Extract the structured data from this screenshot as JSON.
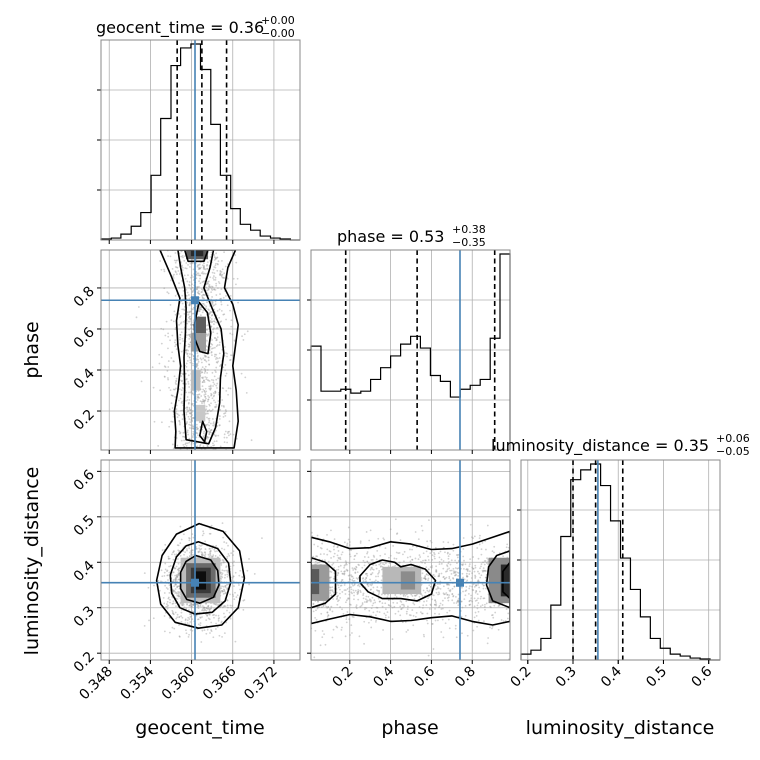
{
  "chart_data": {
    "type": "corner",
    "parameters": [
      "geocent_time",
      "phase",
      "luminosity_distance"
    ],
    "truths": {
      "geocent_time": 0.3605,
      "phase": 0.74,
      "luminosity_distance": 0.355
    },
    "colors": {
      "truth": "#4682b4",
      "hist": "#000000",
      "grid": "#b0b0b0",
      "frame": "#888888"
    },
    "grid": true,
    "titles": {
      "geocent_time": {
        "prefix": "geocent_time = 0.36",
        "plus": "+0.00",
        "minus": "−0.00"
      },
      "phase": {
        "prefix": "phase = 0.53",
        "plus": "+0.38",
        "minus": "−0.35"
      },
      "luminosity_distance": {
        "prefix": "luminosity_distance = 0.35",
        "plus": "+0.06",
        "minus": "−0.05"
      }
    },
    "axis_labels": {
      "x": [
        "geocent_time",
        "phase",
        "luminosity_distance"
      ],
      "y": [
        "phase",
        "luminosity_distance"
      ]
    },
    "ranges": {
      "geocent_time": [
        0.3468,
        0.3758
      ],
      "phase": [
        0.01,
        0.985
      ],
      "luminosity_distance": [
        0.185,
        0.625
      ]
    },
    "ticks": {
      "geocent_time": [
        "0.348",
        "0.354",
        "0.360",
        "0.366",
        "0.372"
      ],
      "phase": [
        "0.2",
        "0.4",
        "0.6",
        "0.8"
      ],
      "luminosity_distance": [
        "0.2",
        "0.3",
        "0.4",
        "0.5",
        "0.6"
      ]
    },
    "quantiles": {
      "geocent_time": [
        0.3579,
        0.3615,
        0.3651
      ],
      "phase": [
        0.18,
        0.53,
        0.91
      ],
      "luminosity_distance": [
        0.3,
        0.35,
        0.41
      ]
    },
    "histograms": {
      "geocent_time": {
        "edges": [
          0.3468,
          0.3483,
          0.3497,
          0.3512,
          0.3526,
          0.3541,
          0.3555,
          0.357,
          0.3584,
          0.3599,
          0.3613,
          0.3628,
          0.3642,
          0.3657,
          0.3671,
          0.3686,
          0.37,
          0.3715,
          0.3729,
          0.3744,
          0.3758
        ],
        "counts": [
          0.005,
          0.01,
          0.03,
          0.07,
          0.14,
          0.33,
          0.62,
          0.89,
          0.98,
          1.0,
          0.87,
          0.59,
          0.33,
          0.16,
          0.08,
          0.05,
          0.02,
          0.01,
          0.005,
          0.0
        ]
      },
      "phase": {
        "edges": [
          0.01,
          0.059,
          0.107,
          0.156,
          0.205,
          0.254,
          0.302,
          0.351,
          0.4,
          0.449,
          0.498,
          0.546,
          0.595,
          0.644,
          0.693,
          0.741,
          0.79,
          0.839,
          0.888,
          0.936,
          0.985
        ],
        "counts": [
          0.53,
          0.3,
          0.3,
          0.31,
          0.29,
          0.3,
          0.36,
          0.42,
          0.48,
          0.54,
          0.58,
          0.52,
          0.38,
          0.35,
          0.27,
          0.31,
          0.33,
          0.36,
          0.57,
          1.0
        ]
      },
      "luminosity_distance": {
        "edges": [
          0.185,
          0.207,
          0.229,
          0.251,
          0.273,
          0.295,
          0.317,
          0.339,
          0.361,
          0.383,
          0.405,
          0.427,
          0.449,
          0.471,
          0.493,
          0.515,
          0.537,
          0.559,
          0.581,
          0.603,
          0.625
        ],
        "counts": [
          0.03,
          0.05,
          0.11,
          0.28,
          0.63,
          0.92,
          0.97,
          1.0,
          0.89,
          0.71,
          0.52,
          0.36,
          0.22,
          0.11,
          0.06,
          0.03,
          0.02,
          0.01,
          0.005,
          0.0
        ]
      }
    },
    "contours_2d": {
      "phase_vs_geocent_time": {
        "levels": [
          [
            [
              0.3576,
              0.02
            ],
            [
              0.3577,
              0.1
            ],
            [
              0.3575,
              0.2
            ],
            [
              0.358,
              0.3
            ],
            [
              0.3584,
              0.42
            ],
            [
              0.358,
              0.52
            ],
            [
              0.3578,
              0.64
            ],
            [
              0.3583,
              0.75
            ],
            [
              0.357,
              0.86
            ],
            [
              0.3554,
              0.985
            ],
            [
              0.3664,
              0.985
            ],
            [
              0.3653,
              0.9
            ],
            [
              0.3648,
              0.8
            ],
            [
              0.366,
              0.72
            ],
            [
              0.3668,
              0.62
            ],
            [
              0.3664,
              0.52
            ],
            [
              0.366,
              0.42
            ],
            [
              0.3665,
              0.3
            ],
            [
              0.3668,
              0.15
            ],
            [
              0.3662,
              0.02
            ]
          ],
          [
            [
              0.3592,
              0.06
            ],
            [
              0.3589,
              0.2
            ],
            [
              0.359,
              0.32
            ],
            [
              0.3589,
              0.46
            ],
            [
              0.3591,
              0.58
            ],
            [
              0.3592,
              0.7
            ],
            [
              0.359,
              0.8
            ],
            [
              0.3584,
              0.9
            ],
            [
              0.358,
              0.985
            ],
            [
              0.3632,
              0.985
            ],
            [
              0.3627,
              0.9
            ],
            [
              0.3618,
              0.8
            ],
            [
              0.363,
              0.7
            ],
            [
              0.3643,
              0.6
            ],
            [
              0.3647,
              0.48
            ],
            [
              0.3642,
              0.36
            ],
            [
              0.3641,
              0.24
            ],
            [
              0.3635,
              0.12
            ],
            [
              0.3625,
              0.04
            ]
          ],
          [
            [
              0.3604,
              0.62
            ],
            [
              0.3611,
              0.73
            ],
            [
              0.3623,
              0.68
            ],
            [
              0.3628,
              0.58
            ],
            [
              0.3624,
              0.48
            ],
            [
              0.3612,
              0.49
            ],
            [
              0.3605,
              0.55
            ]
          ],
          [
            [
              0.359,
              0.985
            ],
            [
              0.3595,
              0.93
            ],
            [
              0.3618,
              0.93
            ],
            [
              0.3624,
              0.985
            ]
          ],
          [
            [
              0.3612,
              0.08
            ],
            [
              0.3616,
              0.15
            ],
            [
              0.3622,
              0.1
            ],
            [
              0.3619,
              0.05
            ]
          ]
        ]
      },
      "luminosity_distance_vs_geocent_time": {
        "levels": [
          [
            [
              0.3611,
              0.485
            ],
            [
              0.3646,
              0.468
            ],
            [
              0.367,
              0.425
            ],
            [
              0.3677,
              0.365
            ],
            [
              0.3668,
              0.3
            ],
            [
              0.3644,
              0.262
            ],
            [
              0.361,
              0.255
            ],
            [
              0.3576,
              0.268
            ],
            [
              0.3555,
              0.308
            ],
            [
              0.3549,
              0.36
            ],
            [
              0.3557,
              0.415
            ],
            [
              0.3578,
              0.462
            ]
          ],
          [
            [
              0.361,
              0.445
            ],
            [
              0.3638,
              0.43
            ],
            [
              0.3654,
              0.398
            ],
            [
              0.3657,
              0.355
            ],
            [
              0.3649,
              0.315
            ],
            [
              0.363,
              0.29
            ],
            [
              0.3605,
              0.286
            ],
            [
              0.3583,
              0.3
            ],
            [
              0.3571,
              0.332
            ],
            [
              0.3569,
              0.372
            ],
            [
              0.3578,
              0.412
            ],
            [
              0.3592,
              0.436
            ]
          ],
          [
            [
              0.3606,
              0.415
            ],
            [
              0.3628,
              0.405
            ],
            [
              0.3638,
              0.382
            ],
            [
              0.364,
              0.35
            ],
            [
              0.3632,
              0.323
            ],
            [
              0.3612,
              0.31
            ],
            [
              0.3593,
              0.318
            ],
            [
              0.3584,
              0.342
            ],
            [
              0.3584,
              0.378
            ],
            [
              0.3592,
              0.402
            ]
          ]
        ]
      },
      "luminosity_distance_vs_phase": {
        "levels": [
          [
            [
              0.01,
              0.455
            ],
            [
              0.1,
              0.445
            ],
            [
              0.2,
              0.43
            ],
            [
              0.3,
              0.432
            ],
            [
              0.4,
              0.445
            ],
            [
              0.5,
              0.44
            ],
            [
              0.6,
              0.428
            ],
            [
              0.7,
              0.43
            ],
            [
              0.8,
              0.44
            ],
            [
              0.9,
              0.455
            ],
            [
              0.985,
              0.468
            ],
            [
              0.985,
              0.27
            ],
            [
              0.9,
              0.262
            ],
            [
              0.8,
              0.27
            ],
            [
              0.7,
              0.282
            ],
            [
              0.6,
              0.278
            ],
            [
              0.5,
              0.272
            ],
            [
              0.4,
              0.27
            ],
            [
              0.3,
              0.28
            ],
            [
              0.2,
              0.285
            ],
            [
              0.1,
              0.275
            ],
            [
              0.01,
              0.265
            ]
          ],
          [
            [
              0.01,
              0.41
            ],
            [
              0.08,
              0.4
            ],
            [
              0.13,
              0.38
            ],
            [
              0.13,
              0.33
            ],
            [
              0.08,
              0.31
            ],
            [
              0.01,
              0.3
            ]
          ],
          [
            [
              0.25,
              0.37
            ],
            [
              0.3,
              0.395
            ],
            [
              0.36,
              0.405
            ],
            [
              0.42,
              0.4
            ],
            [
              0.45,
              0.39
            ],
            [
              0.5,
              0.395
            ],
            [
              0.57,
              0.385
            ],
            [
              0.62,
              0.36
            ],
            [
              0.6,
              0.33
            ],
            [
              0.53,
              0.315
            ],
            [
              0.45,
              0.32
            ],
            [
              0.36,
              0.32
            ],
            [
              0.29,
              0.335
            ],
            [
              0.25,
              0.355
            ]
          ],
          [
            [
              0.985,
              0.425
            ],
            [
              0.92,
              0.415
            ],
            [
              0.88,
              0.39
            ],
            [
              0.87,
              0.35
            ],
            [
              0.9,
              0.315
            ],
            [
              0.985,
              0.3
            ]
          ],
          [
            [
              0.985,
              0.4
            ],
            [
              0.95,
              0.38
            ],
            [
              0.95,
              0.335
            ],
            [
              0.985,
              0.32
            ]
          ]
        ]
      }
    }
  }
}
